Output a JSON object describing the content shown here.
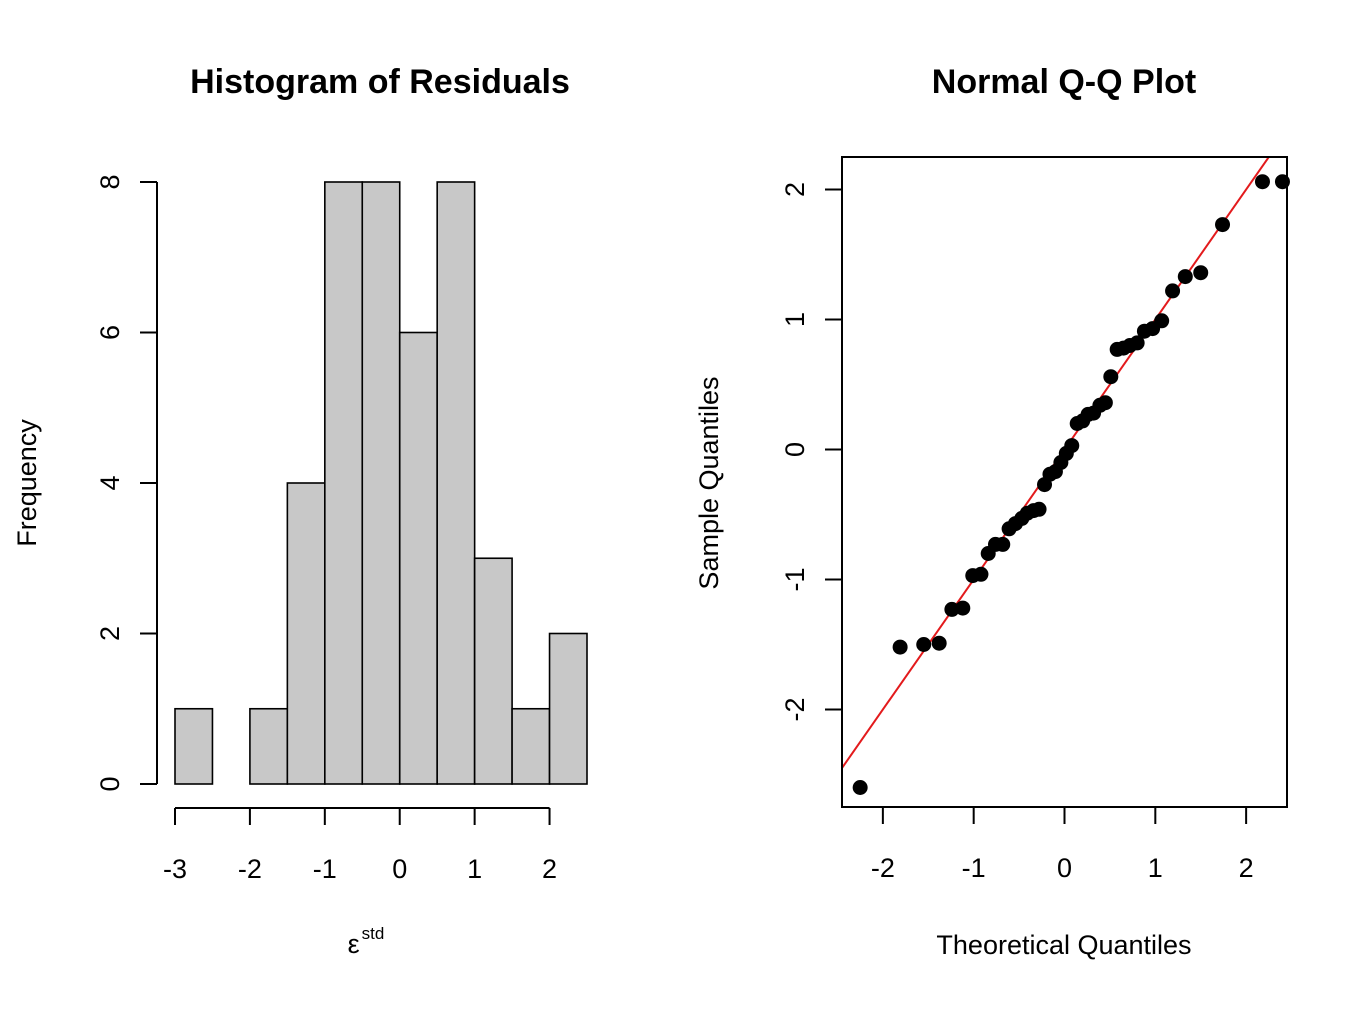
{
  "chart_data": [
    {
      "type": "bar",
      "title": "Histogram of Residuals",
      "xlabel": "ε",
      "xlabel_superscript": "std",
      "ylabel": "Frequency",
      "bins": [
        {
          "from": -3.0,
          "to": -2.5,
          "count": 1
        },
        {
          "from": -2.5,
          "to": -2.0,
          "count": 0
        },
        {
          "from": -2.0,
          "to": -1.5,
          "count": 1
        },
        {
          "from": -1.5,
          "to": -1.0,
          "count": 4
        },
        {
          "from": -1.0,
          "to": -0.5,
          "count": 8
        },
        {
          "from": -0.5,
          "to": 0.0,
          "count": 8
        },
        {
          "from": 0.0,
          "to": 0.5,
          "count": 6
        },
        {
          "from": 0.5,
          "to": 1.0,
          "count": 8
        },
        {
          "from": 1.0,
          "to": 1.5,
          "count": 3
        },
        {
          "from": 1.5,
          "to": 2.0,
          "count": 1
        },
        {
          "from": 2.0,
          "to": 2.5,
          "count": 2
        }
      ],
      "xticks": [
        -3,
        -2,
        -1,
        0,
        1,
        2
      ],
      "yticks": [
        0,
        2,
        4,
        6,
        8
      ],
      "xlim": [
        -3,
        2.5
      ],
      "ylim": [
        0,
        8
      ],
      "bar_color": "#c8c8c8",
      "grid": false
    },
    {
      "type": "scatter",
      "title": "Normal Q-Q Plot",
      "xlabel": "Theoretical Quantiles",
      "ylabel": "Sample Quantiles",
      "xticks": [
        -2,
        -1,
        0,
        1,
        2
      ],
      "yticks": [
        -2,
        -1,
        0,
        1,
        2
      ],
      "xlim": [
        -2.45,
        2.45
      ],
      "ylim": [
        -2.75,
        2.25
      ],
      "point_color": "#000000",
      "line_color": "#e31a1c",
      "reference_line": {
        "intercept": 0.0,
        "slope": 1.0
      },
      "grid": false,
      "points": [
        [
          -2.25,
          -2.6
        ],
        [
          -1.81,
          -1.52
        ],
        [
          -1.55,
          -1.5
        ],
        [
          -1.38,
          -1.49
        ],
        [
          -1.24,
          -1.23
        ],
        [
          -1.12,
          -1.22
        ],
        [
          -1.01,
          -0.97
        ],
        [
          -0.92,
          -0.96
        ],
        [
          -0.84,
          -0.8
        ],
        [
          -0.76,
          -0.73
        ],
        [
          -0.68,
          -0.73
        ],
        [
          -0.61,
          -0.61
        ],
        [
          -0.54,
          -0.57
        ],
        [
          -0.47,
          -0.53
        ],
        [
          -0.41,
          -0.49
        ],
        [
          -0.34,
          -0.47
        ],
        [
          -0.28,
          -0.46
        ],
        [
          -0.22,
          -0.27
        ],
        [
          -0.16,
          -0.19
        ],
        [
          -0.1,
          -0.17
        ],
        [
          -0.04,
          -0.1
        ],
        [
          0.02,
          -0.03
        ],
        [
          0.08,
          0.03
        ],
        [
          0.14,
          0.2
        ],
        [
          0.2,
          0.22
        ],
        [
          0.26,
          0.27
        ],
        [
          0.32,
          0.28
        ],
        [
          0.39,
          0.34
        ],
        [
          0.45,
          0.36
        ],
        [
          0.51,
          0.56
        ],
        [
          0.58,
          0.77
        ],
        [
          0.65,
          0.78
        ],
        [
          0.72,
          0.8
        ],
        [
          0.8,
          0.82
        ],
        [
          0.88,
          0.91
        ],
        [
          0.97,
          0.93
        ],
        [
          1.07,
          0.99
        ],
        [
          1.19,
          1.22
        ],
        [
          1.33,
          1.33
        ],
        [
          1.5,
          1.36
        ],
        [
          1.74,
          1.73
        ],
        [
          2.18,
          2.06
        ],
        [
          2.4,
          2.06
        ]
      ]
    }
  ]
}
